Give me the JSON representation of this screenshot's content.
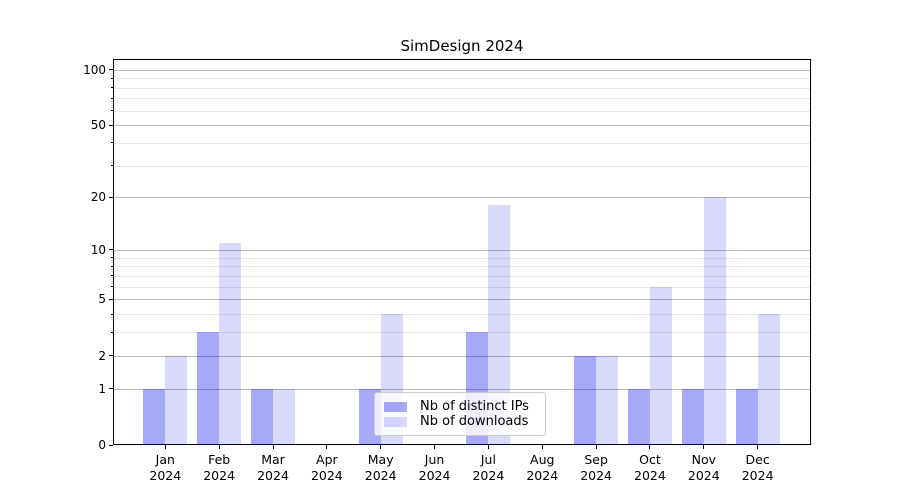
{
  "chart_data": {
    "type": "bar",
    "title": "SimDesign 2024",
    "scale": "log1p",
    "ylim": [
      0,
      114
    ],
    "grid": true,
    "legend_position": "lower center-left inside plot",
    "categories": [
      "Jan",
      "Feb",
      "Mar",
      "Apr",
      "May",
      "Jun",
      "Jul",
      "Aug",
      "Sep",
      "Oct",
      "Nov",
      "Dec"
    ],
    "category_year": "2024",
    "series": [
      {
        "name": "Nb of distinct IPs",
        "color": "rgba(0,0,238,0.34)",
        "values": [
          1,
          3,
          1,
          0,
          1,
          0,
          3,
          0,
          2,
          1,
          1,
          1
        ]
      },
      {
        "name": "Nb of downloads",
        "color": "rgba(0,0,238,0.15)",
        "values": [
          2,
          11,
          1,
          0,
          4,
          0,
          18,
          0,
          2,
          6,
          20,
          4
        ]
      }
    ],
    "yticks": [
      0,
      1,
      2,
      5,
      10,
      20,
      50,
      100
    ],
    "yticks_minor": [
      3,
      4,
      6,
      7,
      8,
      9,
      30,
      40,
      60,
      70,
      80,
      90
    ]
  },
  "colors": {
    "grid_major": "#bcbcbc",
    "grid_minor": "#e8e8e8",
    "spine": "#000000",
    "background": "#ffffff",
    "text": "#000000"
  }
}
